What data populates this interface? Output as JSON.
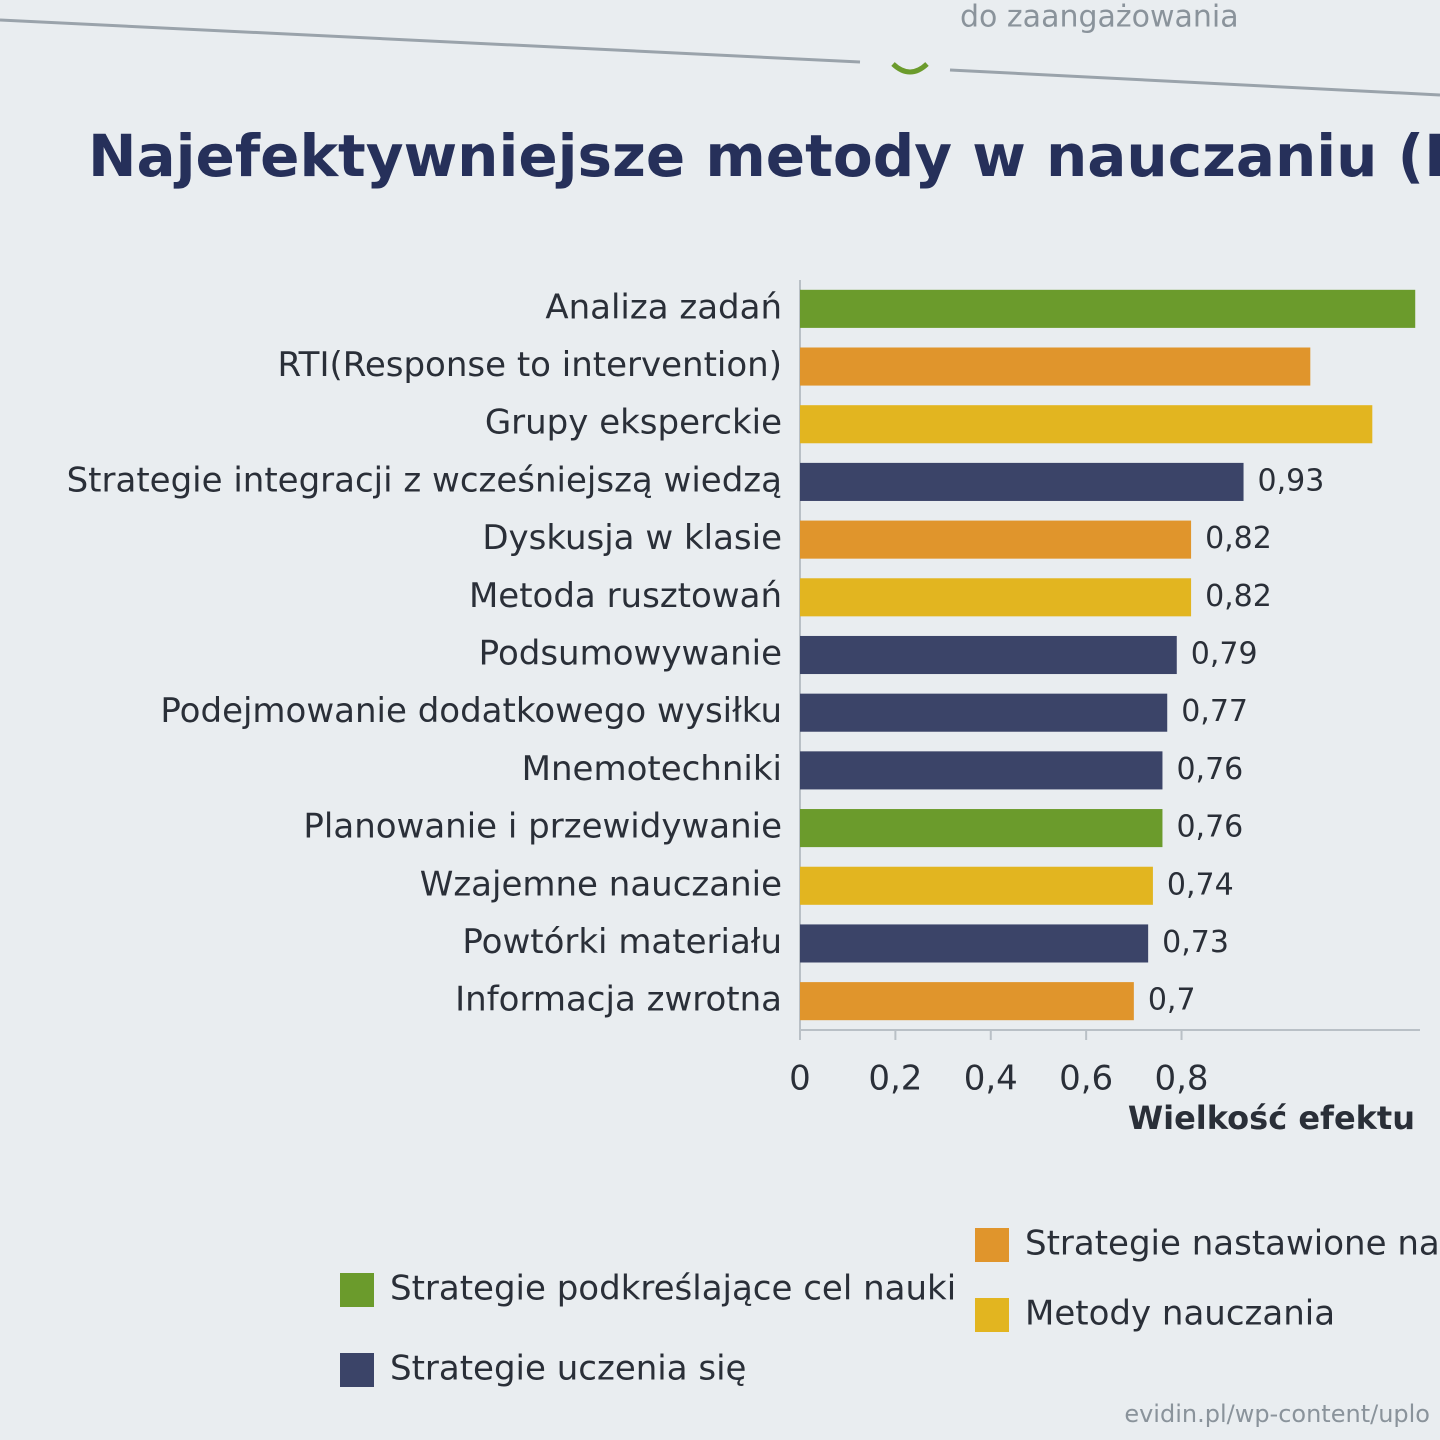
{
  "header": "do zaangażowania",
  "chart_data": {
    "type": "barh",
    "title": "Najefektywniejsze metody w nauczaniu (Hattie",
    "categories": [
      "Analiza zadań",
      "RTI(Response to intervention)",
      "Grupy eksperckie",
      "Strategie integracji z wcześniejszą wiedzą",
      "Dyskusja w klasie",
      "Metoda rusztowań",
      "Podsumowywanie",
      "Podejmowanie dodatkowego wysiłku",
      "Mnemotechniki",
      "Planowanie i przewidywanie",
      "Wzajemne nauczanie",
      "Powtórki materiału",
      "Informacja zwrotna"
    ],
    "values": [
      1.29,
      1.07,
      1.2,
      0.93,
      0.82,
      0.82,
      0.79,
      0.77,
      0.76,
      0.76,
      0.74,
      0.73,
      0.7
    ],
    "value_labels": [
      null,
      null,
      null,
      "0,93",
      "0,82",
      "0,82",
      "0,79",
      "0,77",
      "0,76",
      "0,76",
      "0,74",
      "0,73",
      "0,7"
    ],
    "colors": [
      "#6b9b2c",
      "#e0952c",
      "#e2b520",
      "#3b4468",
      "#e0952c",
      "#e2b520",
      "#3b4468",
      "#3b4468",
      "#3b4468",
      "#6b9b2c",
      "#e2b520",
      "#3b4468",
      "#e0952c"
    ],
    "xlim": [
      0,
      1.3
    ],
    "xticks": [
      0,
      {
        "value": 0.2,
        "label": "0,2"
      },
      {
        "value": 0.4,
        "label": "0,4"
      },
      {
        "value": 0.6,
        "label": "0,6"
      },
      {
        "value": 0.8,
        "label": "0,8"
      }
    ],
    "xlabel": "Wielkość efektu",
    "legend": [
      {
        "name": "Strategie podkreślające cel nauki",
        "color": "#6b9b2c"
      },
      {
        "name": "Strategie uczenia się",
        "color": "#3b4468"
      },
      {
        "name": "Strategie nastawione na inform",
        "color": "#e0952c"
      },
      {
        "name": "Metody nauczania",
        "color": "#e2b520"
      }
    ],
    "source": "evidin.pl/wp-content/uplo"
  }
}
